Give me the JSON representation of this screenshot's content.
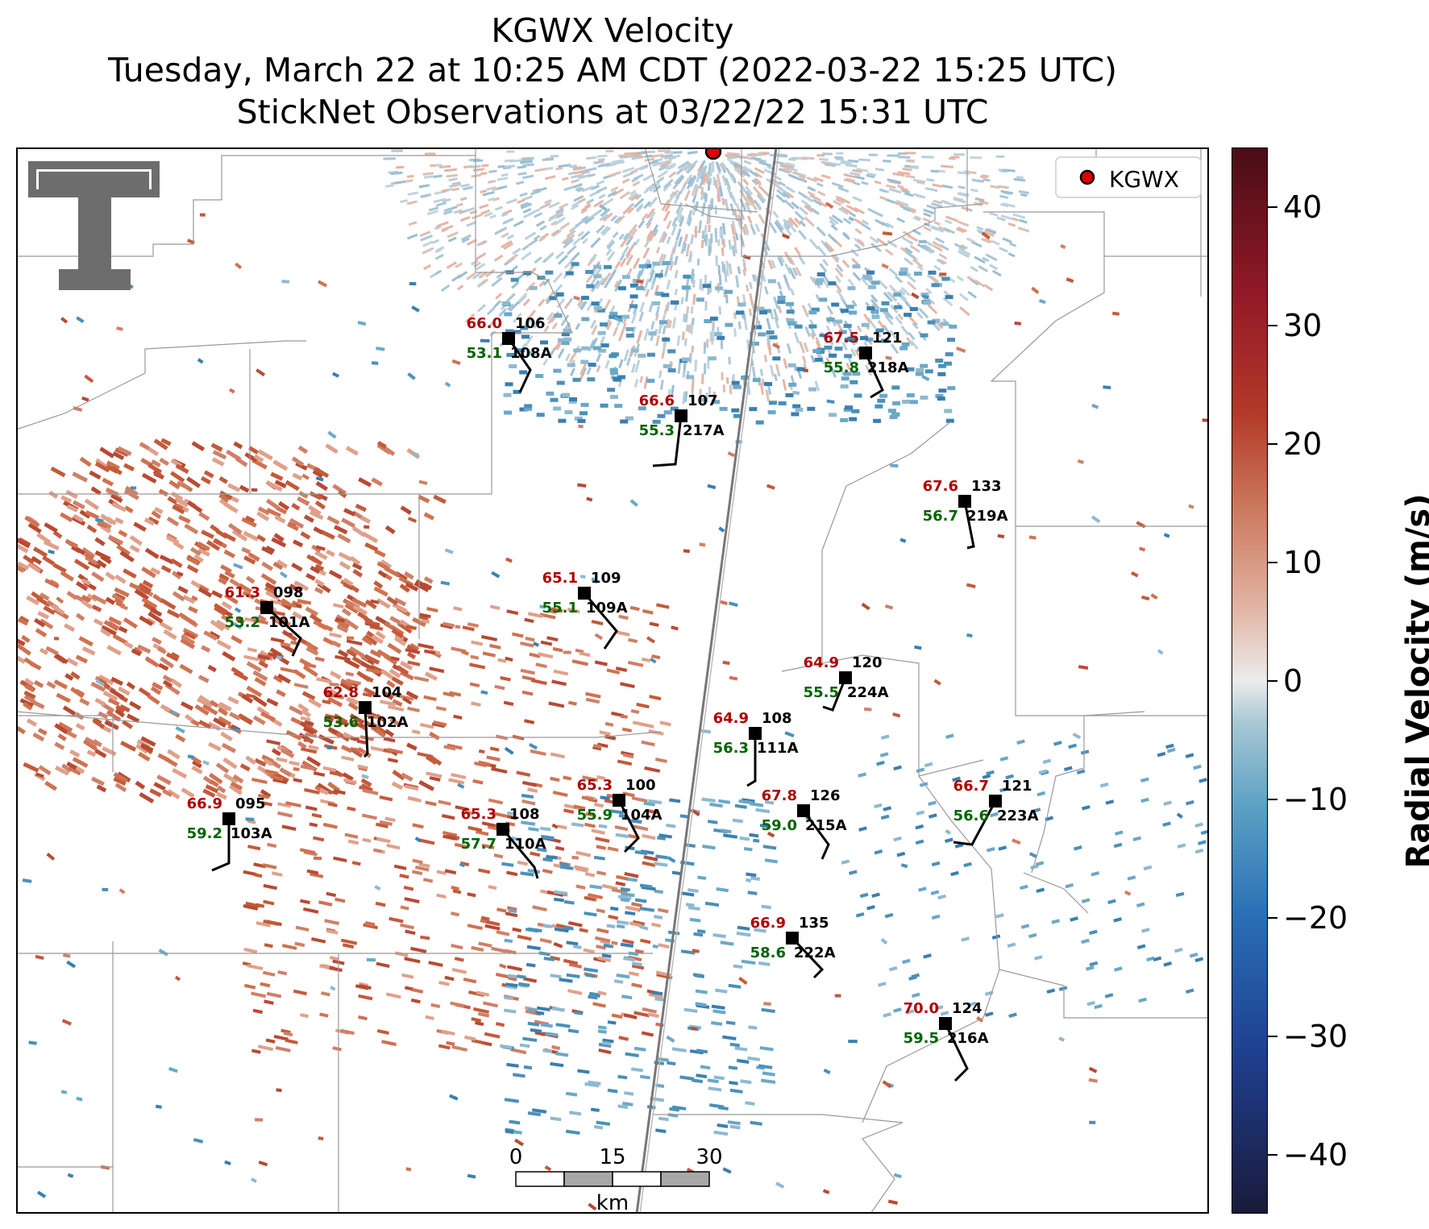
{
  "title": {
    "line1": "KGWX Velocity",
    "line2": "Tuesday, March 22 at 10:25 AM CDT (2022-03-22 15:25 UTC)",
    "line3": "StickNet Observations at 03/22/22 15:31 UTC"
  },
  "legend": {
    "label": "KGWX",
    "marker_color": "#e00000"
  },
  "colorbar": {
    "label": "Radial Velocity (m/s)",
    "ticks": [
      "40",
      "30",
      "20",
      "10",
      "0",
      "−10",
      "−20",
      "−30",
      "−40"
    ],
    "range": [
      -45,
      45
    ]
  },
  "scalebar": {
    "ticks": [
      "0",
      "15",
      "30"
    ],
    "unit": "km"
  },
  "colors": {
    "temperature": "#b00000",
    "dewpoint": "#006400",
    "station": "#000000"
  },
  "stations": [
    {
      "id": "108A",
      "temp": "66.0",
      "dew": "53.1",
      "pressure": "106"
    },
    {
      "id": "218A",
      "temp": "67.5",
      "dew": "55.8",
      "pressure": "121"
    },
    {
      "id": "217A",
      "temp": "66.6",
      "dew": "55.3",
      "pressure": "107"
    },
    {
      "id": "219A",
      "temp": "67.6",
      "dew": "56.7",
      "pressure": "133"
    },
    {
      "id": "109A",
      "temp": "65.1",
      "dew": "55.1",
      "pressure": "109"
    },
    {
      "id": "101A",
      "temp": "61.3",
      "dew": "53.2",
      "pressure": "098"
    },
    {
      "id": "224A",
      "temp": "64.9",
      "dew": "55.5",
      "pressure": "120"
    },
    {
      "id": "102A",
      "temp": "62.8",
      "dew": "53.6",
      "pressure": "104"
    },
    {
      "id": "111A",
      "temp": "64.9",
      "dew": "56.3",
      "pressure": "108"
    },
    {
      "id": "104A",
      "temp": "65.3",
      "dew": "55.9",
      "pressure": "100"
    },
    {
      "id": "215A",
      "temp": "67.8",
      "dew": "59.0",
      "pressure": "126"
    },
    {
      "id": "223A",
      "temp": "66.7",
      "dew": "56.6",
      "pressure": "121"
    },
    {
      "id": "103A",
      "temp": "66.9",
      "dew": "59.2",
      "pressure": "095"
    },
    {
      "id": "110A",
      "temp": "65.3",
      "dew": "57.7",
      "pressure": "108"
    },
    {
      "id": "222A",
      "temp": "66.9",
      "dew": "58.6",
      "pressure": "135"
    },
    {
      "id": "216A",
      "temp": "70.0",
      "dew": "59.5",
      "pressure": "124"
    }
  ]
}
